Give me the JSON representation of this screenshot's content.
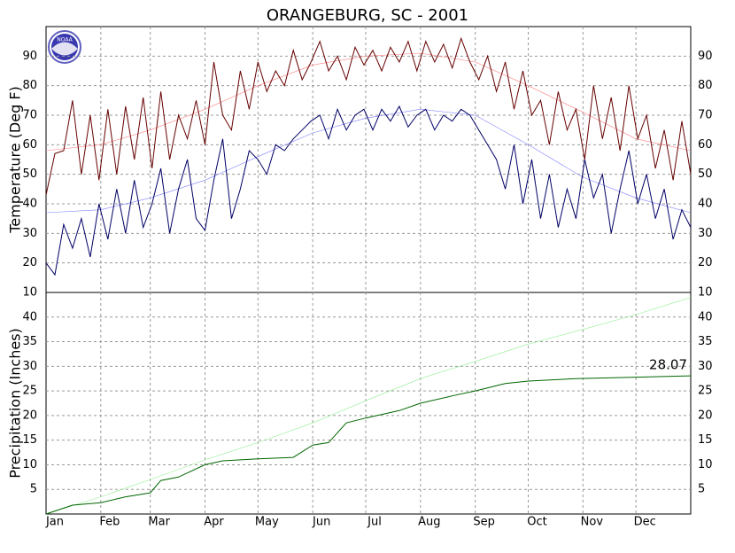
{
  "logo": "NOAA",
  "chart_data": [
    {
      "type": "line",
      "title": "ORANGEBURG, SC - 2001",
      "y_label": "Temperature (Deg F)",
      "x": [
        0,
        5,
        10,
        15,
        20,
        25,
        30,
        35,
        40,
        45,
        50,
        55,
        60,
        65,
        70,
        75,
        80,
        85,
        90,
        95,
        100,
        105,
        110,
        115,
        120,
        125,
        130,
        135,
        140,
        145,
        150,
        155,
        160,
        165,
        170,
        175,
        180,
        185,
        190,
        195,
        200,
        205,
        210,
        215,
        220,
        225,
        230,
        235,
        240,
        245,
        250,
        255,
        260,
        265,
        270,
        275,
        280,
        285,
        290,
        295,
        300,
        305,
        310,
        315,
        320,
        325,
        330,
        335,
        340,
        345,
        350,
        355,
        360,
        365
      ],
      "xlim": [
        0,
        365
      ],
      "ylim": [
        10,
        100
      ],
      "yticks": [
        10,
        20,
        30,
        40,
        50,
        60,
        70,
        80,
        90
      ],
      "grid": true,
      "series": [
        {
          "color": "#8080ff",
          "width": 0.6,
          "x": [
            0,
            31,
            59,
            90,
            120,
            151,
            181,
            212,
            243,
            273,
            304,
            334,
            365
          ],
          "values": [
            37,
            38,
            42,
            48,
            56,
            64,
            69,
            72,
            70,
            60,
            49,
            42,
            37
          ]
        },
        {
          "color": "#ff8080",
          "width": 0.6,
          "x": [
            0,
            31,
            59,
            90,
            120,
            151,
            181,
            212,
            243,
            273,
            304,
            334,
            365
          ],
          "values": [
            58,
            60,
            65,
            72,
            80,
            87,
            90,
            91,
            88,
            80,
            71,
            62,
            58
          ]
        },
        {
          "color": "#660000",
          "width": 1,
          "values": [
            43,
            57,
            58,
            75,
            50,
            70,
            48,
            72,
            50,
            73,
            55,
            76,
            52,
            78,
            55,
            70,
            62,
            75,
            60,
            88,
            70,
            65,
            85,
            72,
            88,
            78,
            85,
            80,
            92,
            82,
            88,
            95,
            85,
            90,
            82,
            93,
            87,
            92,
            85,
            93,
            88,
            95,
            85,
            95,
            88,
            94,
            86,
            96,
            88,
            82,
            90,
            78,
            88,
            72,
            85,
            70,
            75,
            60,
            78,
            65,
            72,
            55,
            80,
            62,
            76,
            58,
            80,
            62,
            70,
            52,
            65,
            48,
            68,
            50
          ]
        },
        {
          "color": "#000066",
          "width": 1,
          "values": [
            20,
            16,
            33,
            25,
            35,
            22,
            40,
            28,
            45,
            30,
            48,
            32,
            40,
            52,
            30,
            45,
            55,
            35,
            31,
            48,
            62,
            35,
            45,
            58,
            55,
            50,
            60,
            58,
            62,
            65,
            68,
            70,
            62,
            72,
            65,
            70,
            72,
            65,
            72,
            68,
            73,
            66,
            70,
            72,
            65,
            70,
            68,
            72,
            70,
            65,
            60,
            55,
            45,
            60,
            40,
            55,
            35,
            50,
            32,
            45,
            35,
            55,
            42,
            50,
            30,
            45,
            58,
            40,
            50,
            35,
            45,
            28,
            38,
            32
          ]
        }
      ]
    },
    {
      "type": "line",
      "y_label": "Precipitation (Inches)",
      "xlim": [
        0,
        365
      ],
      "ylim": [
        0,
        45
      ],
      "yticks": [
        5,
        10,
        15,
        20,
        25,
        30,
        35,
        40
      ],
      "grid": true,
      "xticks": [
        {
          "value": 0,
          "label": "Jan"
        },
        {
          "value": 31,
          "label": "Feb"
        },
        {
          "value": 59,
          "label": "Mar"
        },
        {
          "value": 90,
          "label": "Apr"
        },
        {
          "value": 120,
          "label": "May"
        },
        {
          "value": 151,
          "label": "Jun"
        },
        {
          "value": 181,
          "label": "Jul"
        },
        {
          "value": 212,
          "label": "Aug"
        },
        {
          "value": 243,
          "label": "Sep"
        },
        {
          "value": 273,
          "label": "Oct"
        },
        {
          "value": 304,
          "label": "Nov"
        },
        {
          "value": 334,
          "label": "Dec"
        }
      ],
      "series": [
        {
          "color": "#90ee90",
          "width": 0.6,
          "x": [
            0,
            31,
            59,
            90,
            120,
            151,
            181,
            212,
            243,
            273,
            304,
            334,
            365
          ],
          "values": [
            0,
            3.5,
            7,
            11,
            14.5,
            18.5,
            23,
            27.5,
            31,
            34.5,
            37.5,
            40.5,
            44
          ]
        },
        {
          "color": "#006600",
          "width": 1,
          "end_label": true,
          "x": [
            0,
            15,
            31,
            45,
            59,
            65,
            75,
            90,
            100,
            120,
            140,
            151,
            160,
            170,
            181,
            200,
            212,
            230,
            243,
            260,
            273,
            300,
            334,
            365
          ],
          "values": [
            0,
            1.8,
            2.3,
            3.5,
            4.3,
            6.8,
            7.5,
            10,
            10.8,
            11.2,
            11.5,
            14,
            14.5,
            18.5,
            19.5,
            21,
            22.5,
            24,
            25,
            26.5,
            27,
            27.5,
            27.8,
            28.07
          ]
        }
      ]
    }
  ]
}
